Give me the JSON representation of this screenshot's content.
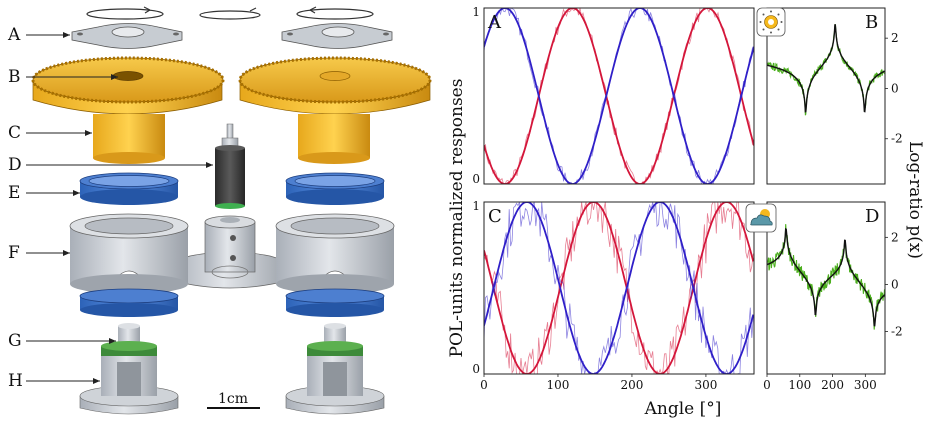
{
  "assembly": {
    "part_labels": [
      "A",
      "B",
      "C",
      "D",
      "E",
      "F",
      "G",
      "H"
    ],
    "scale_bar_label": "1cm"
  },
  "figure": {
    "ylabel_left": "POL-units normalized responses",
    "ylabel_right": "Log-ratio p(x)",
    "xlabel": "Angle [°]",
    "colors": {
      "red": "#d4163a",
      "blue": "#2f1fc8",
      "green": "#4caf1e",
      "black": "#111111"
    },
    "icons": {
      "sunny": "sun-icon",
      "cloudy": "cloud-sun-icon"
    }
  },
  "chart_data": [
    {
      "panel": "A",
      "type": "line",
      "x_ticks": [],
      "y_ticks": [
        "0",
        "1"
      ],
      "xlim": [
        0,
        360
      ],
      "ylim": [
        0,
        1
      ],
      "series": [
        {
          "color": "red",
          "model": "cos",
          "amp": 0.5,
          "offset": 0.5,
          "phase_deg": 118
        },
        {
          "color": "blue",
          "model": "cos",
          "amp": 0.5,
          "offset": 0.5,
          "phase_deg": 28
        }
      ],
      "noise": 0.04
    },
    {
      "panel": "B",
      "type": "line",
      "x_ticks": [],
      "y_ticks": [
        "2",
        "0",
        "-2"
      ],
      "xlim": [
        0,
        360
      ],
      "ylim": [
        -3.8,
        3.2
      ],
      "peaks_x": [
        118,
        208,
        298
      ],
      "peak_signs": [
        -1,
        1,
        -1
      ],
      "noise": 0.15
    },
    {
      "panel": "C",
      "type": "line",
      "x_ticks": [
        "0",
        "100",
        "200",
        "300"
      ],
      "y_ticks": [
        "0",
        "1"
      ],
      "xlim": [
        0,
        365
      ],
      "ylim": [
        0,
        1
      ],
      "series": [
        {
          "color": "red",
          "model": "cos",
          "amp": 0.5,
          "offset": 0.5,
          "phase_deg": 148
        },
        {
          "color": "blue",
          "model": "cos",
          "amp": 0.5,
          "offset": 0.5,
          "phase_deg": 58
        }
      ],
      "noise": 0.14
    },
    {
      "panel": "D",
      "type": "line",
      "x_ticks": [
        "0",
        "100",
        "200",
        "300"
      ],
      "y_ticks": [
        "2",
        "0",
        "-2"
      ],
      "xlim": [
        0,
        360
      ],
      "ylim": [
        -3.8,
        3.5
      ],
      "peaks_x": [
        58,
        148,
        238,
        328
      ],
      "peak_signs": [
        1,
        -1,
        1,
        -1
      ],
      "noise": 0.3
    }
  ]
}
